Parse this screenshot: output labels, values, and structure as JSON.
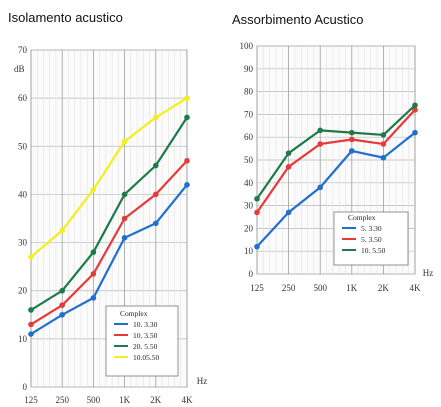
{
  "chart_data": [
    {
      "type": "line",
      "title": "Isolamento acustico",
      "ylabel": "dB",
      "xlabel": "Hz",
      "categories": [
        "125",
        "250",
        "500",
        "1K",
        "2K",
        "4K"
      ],
      "ylim": [
        0,
        70
      ],
      "yticks": [
        0,
        10,
        20,
        30,
        40,
        50,
        60,
        70
      ],
      "grid": true,
      "legend_title": "Complex",
      "legend_position": "bottom-right",
      "series": [
        {
          "name": "10. 3.30",
          "color": "#1f6fd0",
          "values": [
            11,
            15,
            18.5,
            31,
            34,
            42
          ]
        },
        {
          "name": "10. 3.50",
          "color": "#e63a3a",
          "values": [
            13,
            17,
            23.5,
            35,
            40,
            47
          ]
        },
        {
          "name": "20. 5.50",
          "color": "#1e7a4a",
          "values": [
            16,
            20,
            28,
            40,
            46,
            56
          ]
        },
        {
          "name": "10.05.50",
          "color": "#f4ee1a",
          "values": [
            27,
            32.5,
            41,
            51,
            56,
            60
          ]
        }
      ]
    },
    {
      "type": "line",
      "title": "Assorbimento Acustico",
      "ylabel": "",
      "xlabel": "Hz",
      "categories": [
        "125",
        "250",
        "500",
        "1K",
        "2K",
        "4K"
      ],
      "ylim": [
        0,
        100
      ],
      "yticks": [
        0,
        10,
        20,
        30,
        40,
        50,
        60,
        70,
        80,
        90,
        100
      ],
      "grid": true,
      "legend_title": "Complex",
      "legend_position": "bottom-right",
      "series": [
        {
          "name": "5. 3.30",
          "color": "#1f6fd0",
          "values": [
            12,
            27,
            38,
            54,
            51,
            62
          ]
        },
        {
          "name": "5. 3.50",
          "color": "#e63a3a",
          "values": [
            27,
            47,
            57,
            59,
            57,
            72
          ]
        },
        {
          "name": "10. 5.50",
          "color": "#1e7a4a",
          "values": [
            33,
            53,
            63,
            62,
            61,
            74
          ]
        }
      ]
    }
  ]
}
